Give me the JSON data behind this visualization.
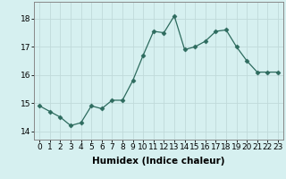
{
  "x": [
    0,
    1,
    2,
    3,
    4,
    5,
    6,
    7,
    8,
    9,
    10,
    11,
    12,
    13,
    14,
    15,
    16,
    17,
    18,
    19,
    20,
    21,
    22,
    23
  ],
  "y": [
    14.9,
    14.7,
    14.5,
    14.2,
    14.3,
    14.9,
    14.8,
    15.1,
    15.1,
    15.8,
    16.7,
    17.55,
    17.5,
    18.1,
    16.9,
    17.0,
    17.2,
    17.55,
    17.6,
    17.0,
    16.5,
    16.1,
    16.1,
    16.1
  ],
  "line_color": "#2d6b5e",
  "marker": "D",
  "marker_size": 2.5,
  "bg_color": "#d6f0f0",
  "grid_color": "#c0dada",
  "xlabel": "Humidex (Indice chaleur)",
  "ylim": [
    13.7,
    18.6
  ],
  "xlim": [
    -0.5,
    23.5
  ],
  "yticks": [
    14,
    15,
    16,
    17,
    18
  ],
  "xticks": [
    0,
    1,
    2,
    3,
    4,
    5,
    6,
    7,
    8,
    9,
    10,
    11,
    12,
    13,
    14,
    15,
    16,
    17,
    18,
    19,
    20,
    21,
    22,
    23
  ],
  "tick_label_fontsize": 6.5,
  "xlabel_fontsize": 7.5,
  "linewidth": 0.9
}
